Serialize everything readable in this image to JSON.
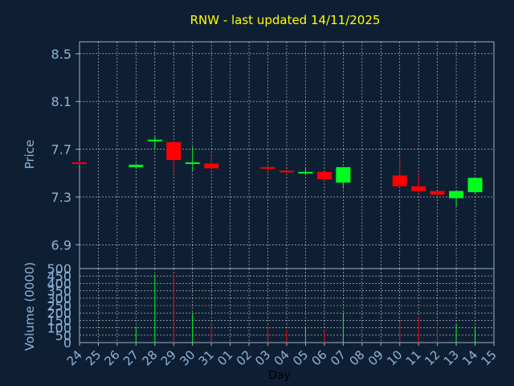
{
  "chart_data": {
    "type": "candlestick",
    "title": "RNW - last updated 14/11/2025",
    "xlabel": "Day",
    "x_ticks": [
      "24",
      "25",
      "26",
      "27",
      "28",
      "29",
      "30",
      "31",
      "01",
      "02",
      "03",
      "04",
      "05",
      "06",
      "07",
      "08",
      "09",
      "10",
      "11",
      "12",
      "13",
      "14",
      "15"
    ],
    "price_panel": {
      "ylabel": "Price",
      "ylim": [
        6.7,
        8.6
      ],
      "yticks": [
        6.9,
        7.3,
        7.7,
        8.1,
        8.5
      ],
      "grid": true
    },
    "volume_panel": {
      "ylabel": "Volume (0000)",
      "ylim": [
        0,
        500
      ],
      "yticks": [
        0,
        50,
        100,
        150,
        200,
        250,
        300,
        350,
        400,
        450,
        500
      ],
      "grid": true
    },
    "candles": [
      {
        "day": "24",
        "open": 7.59,
        "close": 7.58,
        "high": 7.6,
        "low": 7.57,
        "volume": null
      },
      {
        "day": "27",
        "open": 7.55,
        "close": 7.57,
        "high": 7.58,
        "low": 7.54,
        "volume": 110
      },
      {
        "day": "28",
        "open": 7.77,
        "close": 7.78,
        "high": 7.81,
        "low": 7.7,
        "volume": 460
      },
      {
        "day": "29",
        "open": 7.76,
        "close": 7.61,
        "high": 7.76,
        "low": 7.5,
        "volume": 460
      },
      {
        "day": "30",
        "open": 7.58,
        "close": 7.59,
        "high": 7.72,
        "low": 7.52,
        "volume": 200
      },
      {
        "day": "31",
        "open": 7.58,
        "close": 7.54,
        "high": 7.65,
        "low": 7.54,
        "volume": 130
      },
      {
        "day": "03",
        "open": 7.55,
        "close": 7.54,
        "high": 7.57,
        "low": 7.49,
        "volume": 110
      },
      {
        "day": "04",
        "open": 7.52,
        "close": 7.51,
        "high": 7.53,
        "low": 7.5,
        "volume": 90
      },
      {
        "day": "05",
        "open": 7.5,
        "close": 7.51,
        "high": 7.54,
        "low": 7.49,
        "volume": 110
      },
      {
        "day": "06",
        "open": 7.51,
        "close": 7.45,
        "high": 7.51,
        "low": 7.44,
        "volume": 80
      },
      {
        "day": "07",
        "open": 7.42,
        "close": 7.55,
        "high": 7.55,
        "low": 7.37,
        "volume": 200
      },
      {
        "day": "10",
        "open": 7.48,
        "close": 7.39,
        "high": 7.64,
        "low": 7.38,
        "volume": 140
      },
      {
        "day": "11",
        "open": 7.39,
        "close": 7.35,
        "high": 7.49,
        "low": 7.33,
        "volume": 170
      },
      {
        "day": "12",
        "open": 7.35,
        "close": 7.32,
        "high": 7.35,
        "low": 7.31,
        "volume": 110
      },
      {
        "day": "13",
        "open": 7.29,
        "close": 7.35,
        "high": 7.35,
        "low": 7.22,
        "volume": 120
      },
      {
        "day": "14",
        "open": 7.34,
        "close": 7.46,
        "high": 7.46,
        "low": 7.33,
        "volume": 110
      }
    ],
    "colors": {
      "background": "#0f1f33",
      "up": "#00ff1e",
      "down": "#ff0000",
      "title": "#ffff00",
      "axis_text": "#8cb4d8",
      "xlabel": "#000000",
      "grid": "#ffffff",
      "frame": "#9bb3c8"
    }
  }
}
